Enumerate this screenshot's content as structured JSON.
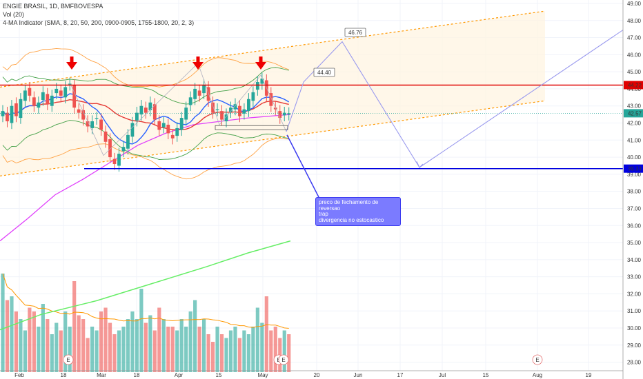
{
  "header": {
    "symbol_line": "ENGIE BRASIL, 1D, BMFBOVESPA",
    "vol_line": "Vol (20)",
    "ma_line": "4-MA Indicator (SMA, 8, 20, 50, 200, 0900-0905, 1755-1800, 20, 2, 3)"
  },
  "colors": {
    "up": "#26a69a",
    "down": "#ef5350",
    "ma8": "#2962ff",
    "ma20": "#e53935",
    "ma50": "#e040fb",
    "ma200": "#66ee66",
    "band_outer": "#ffa040",
    "band_inner": "#43a047",
    "resistance": "#e00000",
    "support": "#0000e0",
    "channel": "#ff9800",
    "projection": "#9999ee",
    "arrows": "#ee0000",
    "note_bg": "#7b7bff"
  },
  "chart_data": {
    "type": "candlestick",
    "title": "ENGIE BRASIL, 1D, BMFBOVESPA",
    "ylim": [
      27.5,
      49.2
    ],
    "ticks": [
      28.0,
      29.0,
      30.0,
      31.0,
      32.0,
      33.0,
      34.0,
      35.0,
      36.0,
      37.0,
      38.0,
      39.0,
      40.0,
      41.0,
      42.0,
      43.0,
      44.0,
      45.0,
      46.0,
      47.0,
      48.0,
      49.0
    ],
    "x_labels": [
      "Feb",
      "18",
      "Mar",
      "18",
      "Apr",
      "15",
      "May",
      "20",
      "Jun",
      "17",
      "Jul",
      "15",
      "Aug",
      "19"
    ],
    "price_labels": [
      {
        "value": 44.22,
        "text": "44.22",
        "color": "#e00000"
      },
      {
        "value": 42.57,
        "text": "42.57",
        "color": "#26a69a"
      },
      {
        "value": 39.33,
        "text": "39.33",
        "color": "#0000e0"
      }
    ],
    "callouts": [
      {
        "label": "46.76",
        "value": 46.76
      },
      {
        "label": "44.40",
        "value": 44.4
      }
    ],
    "earnings_marker": "E",
    "annotation": [
      "preco de fechamento de reversao",
      "trap",
      "divergencia no estocastico"
    ],
    "grid": true,
    "closes": [
      42.7,
      42.1,
      43.0,
      42.4,
      43.4,
      43.9,
      43.6,
      43.0,
      43.2,
      43.8,
      43.1,
      43.6,
      44.0,
      43.6,
      44.1,
      44.3,
      42.9,
      42.6,
      42.2,
      41.8,
      42.1,
      42.3,
      41.6,
      40.9,
      40.0,
      39.6,
      40.2,
      40.6,
      41.3,
      42.0,
      42.6,
      43.0,
      42.6,
      43.2,
      42.2,
      41.6,
      42.0,
      41.4,
      41.1,
      41.7,
      42.3,
      42.9,
      43.5,
      44.0,
      43.6,
      44.2,
      43.3,
      42.6,
      42.8,
      42.2,
      42.5,
      42.9,
      43.1,
      42.4,
      42.8,
      43.4,
      43.8,
      44.4,
      44.6,
      43.6,
      43.0,
      42.8,
      42.3,
      42.6,
      42.57
    ],
    "volumes": [
      1.3,
      0.95,
      1.0,
      0.8,
      0.7,
      0.55,
      0.85,
      0.8,
      0.6,
      0.9,
      0.7,
      0.5,
      0.65,
      0.55,
      0.8,
      0.6,
      1.2,
      0.75,
      0.7,
      0.45,
      0.6,
      0.55,
      0.8,
      0.85,
      0.65,
      0.5,
      0.55,
      0.6,
      0.7,
      0.8,
      0.7,
      1.1,
      0.65,
      0.75,
      0.55,
      0.85,
      0.7,
      0.6,
      0.6,
      0.55,
      0.7,
      0.6,
      0.8,
      0.95,
      0.6,
      0.7,
      0.5,
      0.4,
      0.6,
      0.5,
      0.45,
      0.55,
      0.6,
      0.45,
      0.55,
      0.5,
      0.6,
      0.85,
      0.65,
      1.0,
      0.55,
      0.6,
      0.45,
      0.55,
      0.5
    ]
  }
}
